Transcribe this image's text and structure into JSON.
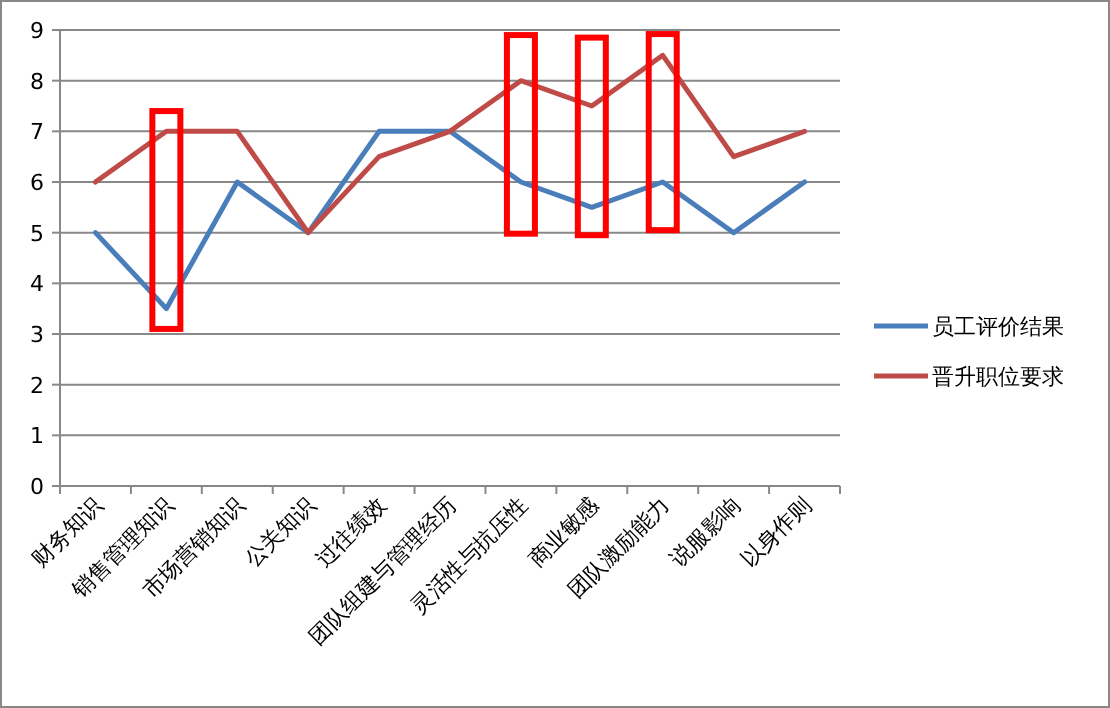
{
  "chart_data": {
    "type": "line",
    "categories": [
      "财务知识",
      "销售管理知识",
      "市场营销知识",
      "公关知识",
      "过往绩效",
      "团队组建与管理经历",
      "灵活性与抗压性",
      "商业敏感",
      "团队激励能力",
      "说服影响",
      "以身作则"
    ],
    "series": [
      {
        "name": "员工评价结果",
        "color": "#4a7ebb",
        "values": [
          5,
          3.5,
          6,
          5,
          7,
          7,
          6,
          5.5,
          6,
          5,
          6
        ]
      },
      {
        "name": "晋升职位要求",
        "color": "#be4b48",
        "values": [
          6,
          7,
          7,
          5,
          6.5,
          7,
          8,
          7.5,
          8.5,
          6.5,
          7
        ]
      }
    ],
    "ylim": [
      0,
      9
    ],
    "yticks": [
      0,
      1,
      2,
      3,
      4,
      5,
      6,
      7,
      8,
      9
    ],
    "grid": "y",
    "legend": "right",
    "marker": "none",
    "line_style": "solid"
  }
}
